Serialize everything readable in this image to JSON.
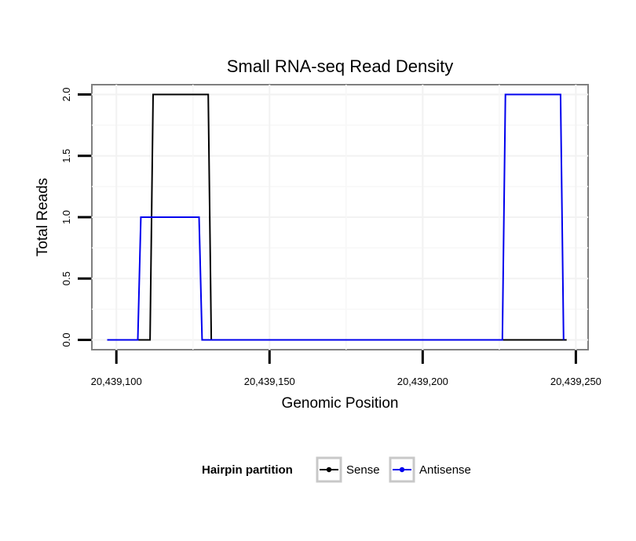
{
  "chart_data": {
    "type": "line",
    "title": "Small RNA-seq Read Density",
    "xlabel": "Genomic Position",
    "ylabel": "Total Reads",
    "xlim": [
      20439092,
      20439254
    ],
    "ylim": [
      -0.08,
      2.08
    ],
    "x_ticks": [
      20439100,
      20439150,
      20439200,
      20439250
    ],
    "x_tick_labels": [
      "20,439,100",
      "20,439,150",
      "20,439,200",
      "20,439,250"
    ],
    "y_ticks": [
      0,
      0.5,
      1,
      1.5,
      2
    ],
    "y_tick_labels": [
      "0.0",
      "0.5",
      "1.0",
      "1.5",
      "2.0"
    ],
    "grid": true,
    "legend": {
      "title": "Hairpin partition",
      "position": "bottom",
      "entries": [
        "Sense",
        "Antisense"
      ]
    },
    "series": [
      {
        "name": "Sense",
        "color": "#000000",
        "x": [
          20439097,
          20439111,
          20439112,
          20439130,
          20439131,
          20439247
        ],
        "y": [
          0,
          0,
          2,
          2,
          0,
          0
        ]
      },
      {
        "name": "Antisense",
        "color": "#0000ee",
        "x": [
          20439097,
          20439107,
          20439108,
          20439127,
          20439128,
          20439226,
          20439227,
          20439245,
          20439246
        ],
        "y": [
          0,
          0,
          1,
          1,
          0,
          0,
          2,
          2,
          0
        ]
      }
    ]
  }
}
